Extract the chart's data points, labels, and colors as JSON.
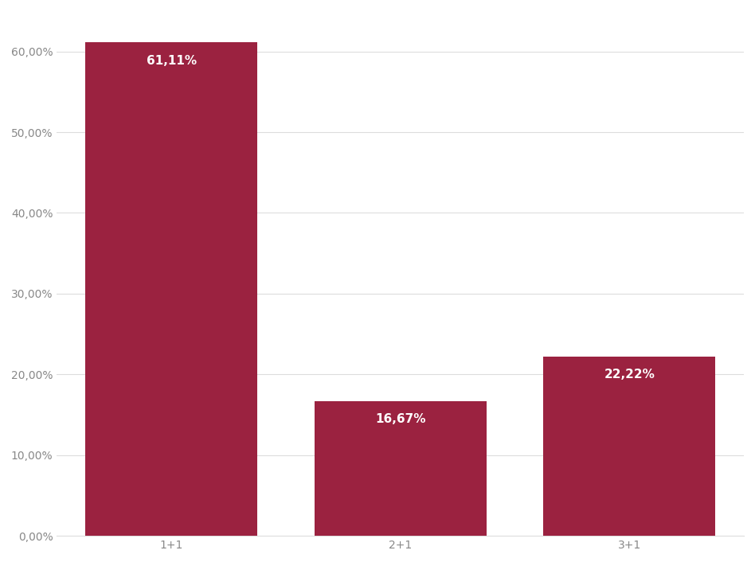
{
  "categories": [
    "1+1",
    "2+1",
    "3+1"
  ],
  "values": [
    61.11,
    16.67,
    22.22
  ],
  "labels": [
    "61,11%",
    "16,67%",
    "22,22%"
  ],
  "bar_color": "#9b2240",
  "background_color": "#ffffff",
  "ylim": [
    0,
    65
  ],
  "yticks": [
    0,
    10,
    20,
    30,
    40,
    50,
    60
  ],
  "ytick_labels": [
    "0,00%",
    "10,00%",
    "20,00%",
    "30,00%",
    "40,00%",
    "50,00%",
    "60,00%"
  ],
  "grid_color": "#dddddd",
  "label_fontsize": 11,
  "tick_fontsize": 10,
  "label_color": "#ffffff",
  "bar_width": 0.75,
  "tick_color": "#888888"
}
